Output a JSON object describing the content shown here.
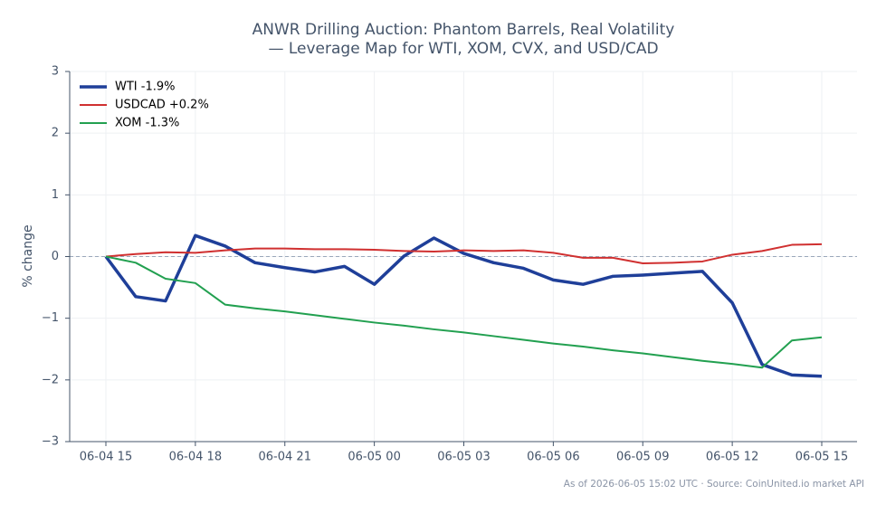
{
  "chart_data": {
    "type": "line",
    "title": "ANWR Drilling Auction: Phantom Barrels, Real Volatility",
    "subtitle": "— Leverage Map for WTI, XOM, CVX, and USD/CAD",
    "y_label": "% change",
    "footnote": "As of 2026-06-05 15:02 UTC · Source: CoinUnited.io market API",
    "x": [
      "06-04 15",
      null,
      null,
      "06-04 18",
      null,
      null,
      "06-04 21",
      null,
      null,
      "06-05 00",
      null,
      null,
      "06-05 03",
      null,
      null,
      "06-05 06",
      null,
      null,
      "06-05 09",
      null,
      null,
      "06-05 12",
      null,
      null,
      "06-05 15"
    ],
    "series": [
      {
        "name": "WTI -1.9%",
        "color": "#1f3f99",
        "width": 3.5,
        "values": [
          0,
          -0.65,
          -0.72,
          0.34,
          0.17,
          -0.1,
          -0.18,
          -0.25,
          -0.16,
          -0.45,
          0.01,
          0.3,
          0.05,
          -0.1,
          -0.19,
          -0.38,
          -0.45,
          -0.32,
          -0.3,
          -0.27,
          -0.24,
          -0.75,
          -1.75,
          -1.92,
          -1.94
        ]
      },
      {
        "name": "USDCAD +0.2%",
        "color": "#d03030",
        "width": 2,
        "values": [
          0,
          0.04,
          0.07,
          0.06,
          0.1,
          0.13,
          0.13,
          0.12,
          0.12,
          0.11,
          0.09,
          0.08,
          0.1,
          0.09,
          0.1,
          0.06,
          -0.02,
          -0.02,
          -0.11,
          -0.1,
          -0.08,
          0.03,
          0.09,
          0.19,
          0.2
        ]
      },
      {
        "name": "XOM -1.3%",
        "color": "#22a050",
        "width": 2,
        "values": [
          0,
          -0.1,
          -0.36,
          -0.43,
          -0.78,
          -0.84,
          -0.89,
          -0.95,
          -1.01,
          -1.07,
          -1.12,
          -1.18,
          -1.23,
          -1.29,
          -1.35,
          -1.41,
          -1.46,
          -1.52,
          -1.57,
          -1.63,
          -1.69,
          -1.74,
          -1.8,
          -1.36,
          -1.31
        ]
      }
    ],
    "ylim": [
      -3,
      3
    ],
    "yticks": [
      {
        "value": -3,
        "label": "−3"
      },
      {
        "value": -2,
        "label": "−2"
      },
      {
        "value": -1,
        "label": "−1"
      },
      0,
      1,
      2,
      3
    ],
    "grid": true,
    "zero_line": true,
    "legend": "upper-left"
  }
}
